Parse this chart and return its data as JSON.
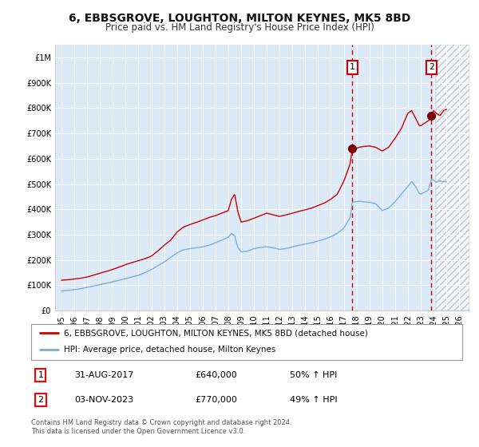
{
  "title1": "6, EBBSGROVE, LOUGHTON, MILTON KEYNES, MK5 8BD",
  "title2": "Price paid vs. HM Land Registry's House Price Index (HPI)",
  "ylim": [
    0,
    1050000
  ],
  "yticks": [
    0,
    100000,
    200000,
    300000,
    400000,
    500000,
    600000,
    700000,
    800000,
    900000,
    1000000
  ],
  "ytick_labels": [
    "£0",
    "£100K",
    "£200K",
    "£300K",
    "£400K",
    "£500K",
    "£600K",
    "£700K",
    "£800K",
    "£900K",
    "£1M"
  ],
  "xtick_years": [
    1995,
    1996,
    1997,
    1998,
    1999,
    2000,
    2001,
    2002,
    2003,
    2004,
    2005,
    2006,
    2007,
    2008,
    2009,
    2010,
    2011,
    2012,
    2013,
    2014,
    2015,
    2016,
    2017,
    2018,
    2019,
    2020,
    2021,
    2022,
    2023,
    2024,
    2025,
    2026
  ],
  "xlim_min": 1994.5,
  "xlim_max": 2026.8,
  "bg_color": "#dce9f7",
  "hatch_region_start": 2024.17,
  "hatch_region_end": 2026.8,
  "vline1_x": 2017.67,
  "vline2_x": 2023.84,
  "marker1_x": 2017.67,
  "marker1_y": 640000,
  "marker2_x": 2023.84,
  "marker2_y": 770000,
  "red_line_color": "#cc0000",
  "blue_line_color": "#7bafd4",
  "marker_color": "#7a0000",
  "vline_color": "#cc0000",
  "legend_label_red": "6, EBBSGROVE, LOUGHTON, MILTON KEYNES, MK5 8BD (detached house)",
  "legend_label_blue": "HPI: Average price, detached house, Milton Keynes",
  "annotation1_num": "1",
  "annotation1_date": "31-AUG-2017",
  "annotation1_price": "£640,000",
  "annotation1_hpi": "50% ↑ HPI",
  "annotation2_num": "2",
  "annotation2_date": "03-NOV-2023",
  "annotation2_price": "£770,000",
  "annotation2_hpi": "49% ↑ HPI",
  "footer": "Contains HM Land Registry data © Crown copyright and database right 2024.\nThis data is licensed under the Open Government Licence v3.0.",
  "title_fontsize": 10,
  "subtitle_fontsize": 8.5,
  "tick_fontsize": 7,
  "legend_fontsize": 7.5,
  "annotation_fontsize": 8,
  "footer_fontsize": 6
}
